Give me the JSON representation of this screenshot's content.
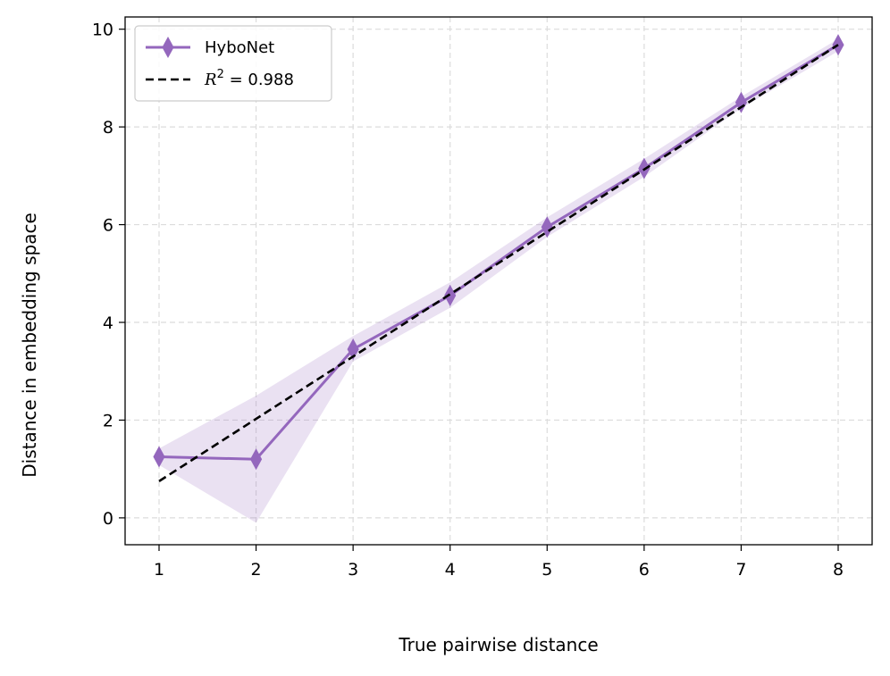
{
  "chart_data": {
    "type": "line",
    "xlabel": "True pairwise distance",
    "ylabel": "Distance in embedding space",
    "xlim": [
      0.65,
      8.35
    ],
    "ylim": [
      -0.55,
      10.25
    ],
    "x_ticks": [
      1,
      2,
      3,
      4,
      5,
      6,
      7,
      8
    ],
    "y_ticks": [
      0,
      2,
      4,
      6,
      8,
      10
    ],
    "grid": true,
    "legend_position": "top-left",
    "series": [
      {
        "name": "HyboNet",
        "color": "#9467bd",
        "marker": "thin-diamond",
        "x": [
          1,
          2,
          3,
          4,
          5,
          6,
          7,
          8
        ],
        "y": [
          1.25,
          1.2,
          3.45,
          4.55,
          5.95,
          7.15,
          8.5,
          9.68
        ],
        "band_lower": [
          1.08,
          -0.1,
          3.2,
          4.3,
          5.75,
          6.98,
          8.38,
          9.55
        ],
        "band_upper": [
          1.42,
          2.5,
          3.72,
          4.82,
          6.15,
          7.35,
          8.62,
          9.8
        ]
      },
      {
        "name": "R²=0.988",
        "legend_math": {
          "base": "R",
          "sup": "2",
          "rest": " = 0.988"
        },
        "color": "#000000",
        "style": "dashed",
        "x": [
          1,
          8
        ],
        "y": [
          0.75,
          9.68
        ]
      }
    ]
  }
}
